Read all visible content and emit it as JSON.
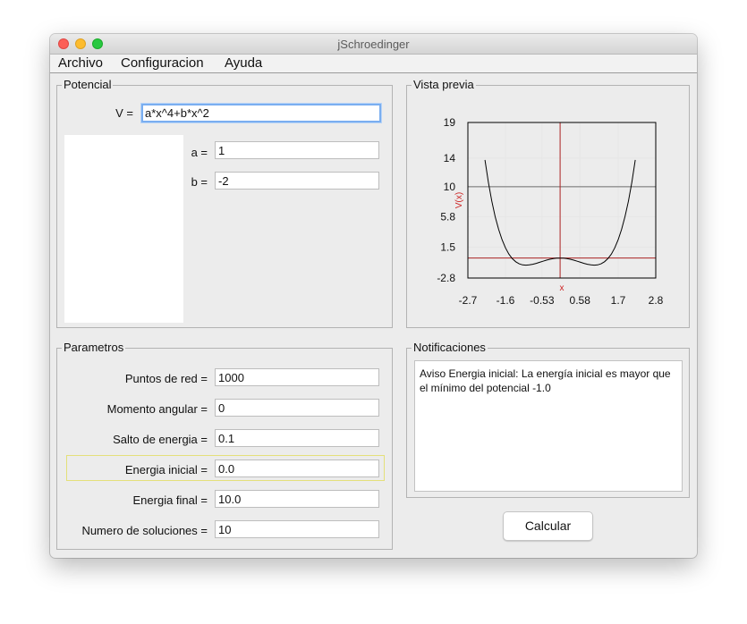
{
  "window": {
    "title": "jSchroedinger"
  },
  "menu": {
    "items": [
      "Archivo",
      "Configuracion",
      "Ayuda"
    ]
  },
  "potencial": {
    "title": "Potencial",
    "v_label": "V =",
    "v_value": "a*x^4+b*x^2",
    "params": [
      {
        "label": "a =",
        "value": "1"
      },
      {
        "label": "b =",
        "value": "-2"
      }
    ]
  },
  "vista": {
    "title": "Vista previa"
  },
  "parametros": {
    "title": "Parametros",
    "rows": [
      {
        "label": "Puntos de red =",
        "value": "1000"
      },
      {
        "label": "Momento angular =",
        "value": "0"
      },
      {
        "label": "Salto de energia =",
        "value": "0.1"
      },
      {
        "label": "Energia inicial =",
        "value": "0.0"
      },
      {
        "label": "Energia final =",
        "value": "10.0"
      },
      {
        "label": "Numero de soluciones =",
        "value": "10"
      }
    ]
  },
  "notificaciones": {
    "title": "Notificaciones",
    "message": "Aviso Energia inicial: La energía inicial es mayor que el mínimo del potencial -1.0"
  },
  "actions": {
    "calcular": "Calcular"
  },
  "chart_data": {
    "type": "line",
    "function": "x^4 - 2x^2",
    "x_range": [
      -2.7,
      2.8
    ],
    "y_range": [
      -2.8,
      19
    ],
    "x_ticks": [
      "-2.7",
      "-1.6",
      "-0.53",
      "0.58",
      "1.7",
      "2.8"
    ],
    "y_ticks": [
      "19",
      "14",
      "10",
      "5.8",
      "1.5",
      "-2.8"
    ],
    "xlabel": "x",
    "ylabel": "V(x)",
    "grid": true,
    "reference_lines": {
      "energia_final": 10.0,
      "energia_inicial": 0.0,
      "x_axis": 0
    },
    "series": [
      {
        "x": [
          -2.2,
          -2.1,
          -2.0,
          -1.9,
          -1.8,
          -1.7,
          -1.6,
          -1.5,
          -1.4,
          -1.3,
          -1.2,
          -1.1,
          -1.0,
          -0.9,
          -0.8,
          -0.7,
          -0.6,
          -0.5,
          -0.4,
          -0.3,
          -0.2,
          -0.1,
          0.0,
          0.1,
          0.2,
          0.3,
          0.4,
          0.5,
          0.6,
          0.7,
          0.8,
          0.9,
          1.0,
          1.1,
          1.2,
          1.3,
          1.4,
          1.5,
          1.6,
          1.7,
          1.8,
          1.9,
          2.0,
          2.1,
          2.2
        ],
        "y": [
          13.75,
          10.63,
          8.0,
          5.8,
          4.02,
          2.57,
          1.43,
          0.56,
          -0.08,
          -0.52,
          -0.81,
          -0.96,
          -1.0,
          -0.96,
          -0.87,
          -0.74,
          -0.59,
          -0.44,
          -0.29,
          -0.17,
          -0.08,
          -0.02,
          0.0,
          -0.02,
          -0.08,
          -0.17,
          -0.29,
          -0.44,
          -0.59,
          -0.74,
          -0.87,
          -0.96,
          -1.0,
          -0.96,
          -0.81,
          -0.52,
          -0.08,
          0.56,
          1.43,
          2.57,
          4.02,
          5.8,
          8.0,
          10.63,
          13.75
        ]
      }
    ]
  }
}
